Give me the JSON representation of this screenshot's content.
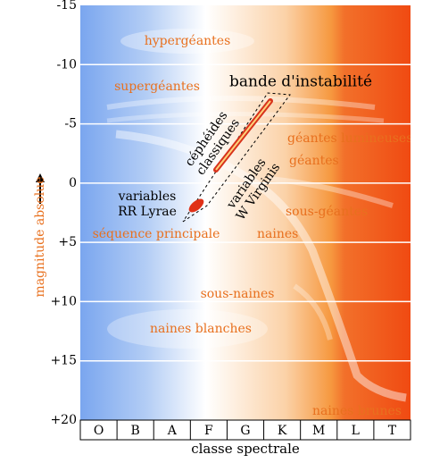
{
  "axes": {
    "y_label": "magnitude absolue",
    "x_label": "classe spectrale",
    "y_ticks": [
      "-15",
      "-10",
      "-5",
      "0",
      "+5",
      "+10",
      "+15",
      "+20"
    ],
    "spectral_classes": [
      "O",
      "B",
      "A",
      "F",
      "G",
      "K",
      "M",
      "L",
      "T"
    ]
  },
  "regions": {
    "hypergiants": "hypergéantes",
    "supergiants": "supergéantes",
    "bright_giants": "géantes lumineuses",
    "giants": "géantes",
    "subgiants": "sous-géantes",
    "main_sequence": "séquence principale",
    "dwarfs": "naines",
    "subdwarfs": "sous-naines",
    "white_dwarfs": "naines blanches",
    "brown_dwarfs": "naines brunes"
  },
  "instability_strip": {
    "label": "bande d'instabilité",
    "cepheids": [
      "céphéides",
      "classiques"
    ],
    "w_virginis": [
      "variables",
      "W Virginis"
    ],
    "rr_lyrae": [
      "variables",
      "RR Lyrae"
    ]
  }
}
